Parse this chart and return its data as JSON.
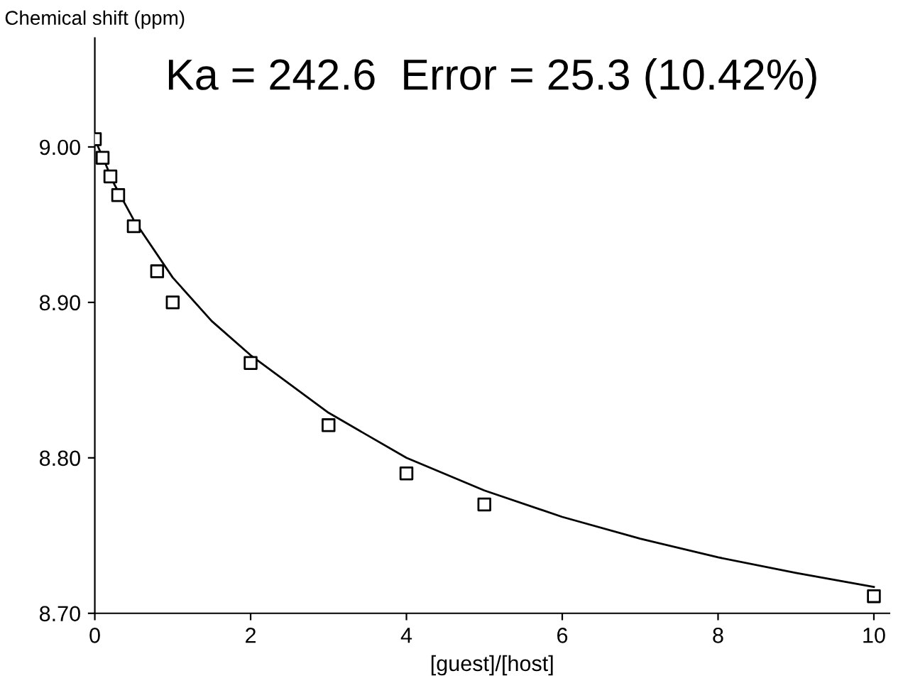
{
  "chart_data": {
    "type": "scatter",
    "ylabel": "Chemical shift (ppm)",
    "xlabel": "[guest]/[host]",
    "annotations": [
      "Ka = 242.6  Error = 25.3 (10.42%)"
    ],
    "series": [
      {
        "color": "#000000",
        "marker": "square",
        "x": [
          0,
          0.1,
          0.2,
          0.3,
          0.5,
          0.8,
          1,
          2,
          3,
          4,
          5,
          10
        ],
        "values": [
          9.005,
          8.993,
          8.981,
          8.969,
          8.949,
          8.92,
          8.9,
          8.861,
          8.821,
          8.79,
          8.77,
          8.711
        ]
      },
      {
        "type": "line",
        "color": "#000000",
        "x": [
          0,
          0.25,
          0.5,
          1,
          1.5,
          2,
          3,
          4,
          5,
          6,
          7,
          8,
          9,
          10
        ],
        "values": [
          9.005,
          8.976,
          8.953,
          8.916,
          8.888,
          8.866,
          8.829,
          8.8,
          8.779,
          8.762,
          8.748,
          8.736,
          8.726,
          8.717
        ]
      }
    ],
    "xlim": [
      0,
      10.2
    ],
    "ylim": [
      8.7,
      9.07
    ],
    "xticks": [
      0,
      2,
      4,
      6,
      8,
      10
    ],
    "yticks": [
      {
        "value": 8.7,
        "label": "8.70"
      },
      {
        "value": 8.8,
        "label": "8.80"
      },
      {
        "value": 8.9,
        "label": "8.90"
      },
      {
        "value": 9.0,
        "label": "9.00"
      }
    ],
    "grid": false
  }
}
